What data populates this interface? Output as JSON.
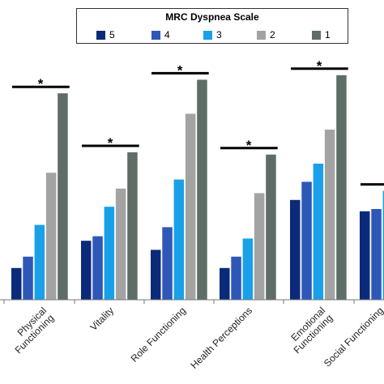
{
  "chart_data": {
    "type": "bar",
    "legend_title": "MRC Dyspnea Scale",
    "legend_position": "top",
    "categories": [
      "Physical\nFunctioning",
      "Vitality",
      "Role Functioning",
      "Health Perceptions",
      "Emotional\nFunctioning",
      "Social Functioning"
    ],
    "series": [
      {
        "name": "5",
        "color": "#0b2a7a",
        "values": [
          14,
          26,
          22,
          14,
          44,
          39
        ]
      },
      {
        "name": "4",
        "color": "#2e57b8",
        "values": [
          19,
          28,
          32,
          19,
          52,
          40
        ]
      },
      {
        "name": "3",
        "color": "#1aa0e8",
        "values": [
          33,
          41,
          53,
          27,
          60,
          48
        ]
      },
      {
        "name": "2",
        "color": "#a3a3a3",
        "values": [
          56,
          49,
          82,
          47,
          75,
          null
        ]
      },
      {
        "name": "1",
        "color": "#5e6e66",
        "values": [
          91,
          65,
          97,
          64,
          99,
          null
        ]
      }
    ],
    "significance_marker": "*",
    "significant_categories": [
      0,
      1,
      2,
      3,
      4,
      5
    ],
    "ylim": [
      0,
      105
    ],
    "grid": false
  }
}
